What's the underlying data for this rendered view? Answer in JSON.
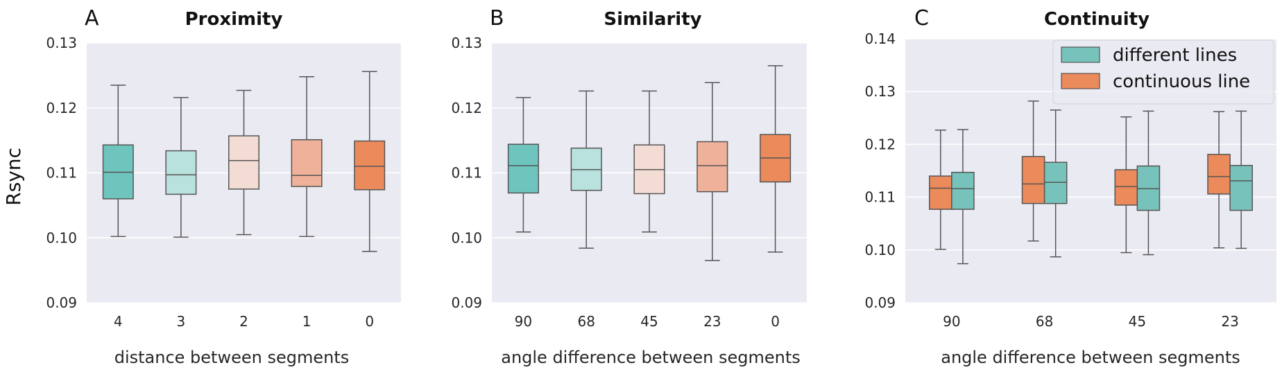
{
  "figure": {
    "ylabel": "Rsync"
  },
  "chart_data": [
    {
      "type": "box",
      "panel_label": "A",
      "title": "Proximity",
      "xlabel": "distance between segments",
      "ylabel": "Rsync",
      "ylim": [
        0.09,
        0.13
      ],
      "yticks": [
        "0.09",
        "0.10",
        "0.11",
        "0.12",
        "0.13"
      ],
      "grid": true,
      "categories": [
        "4",
        "3",
        "2",
        "1",
        "0"
      ],
      "colors": [
        "#6ec5bd",
        "#b9e1dd",
        "#f2dcd3",
        "#efb199",
        "#eb8a5b"
      ],
      "series": [
        {
          "boxes": [
            {
              "whislo": 0.1002,
              "q1": 0.106,
              "med": 0.1101,
              "q3": 0.1143,
              "whishi": 0.1235
            },
            {
              "whislo": 0.1001,
              "q1": 0.1067,
              "med": 0.1097,
              "q3": 0.1134,
              "whishi": 0.1216
            },
            {
              "whislo": 0.1005,
              "q1": 0.1075,
              "med": 0.1119,
              "q3": 0.1157,
              "whishi": 0.1227
            },
            {
              "whislo": 0.1002,
              "q1": 0.1079,
              "med": 0.1096,
              "q3": 0.1151,
              "whishi": 0.1248
            },
            {
              "whislo": 0.0979,
              "q1": 0.1074,
              "med": 0.111,
              "q3": 0.1149,
              "whishi": 0.1256
            }
          ]
        }
      ]
    },
    {
      "type": "box",
      "panel_label": "B",
      "title": "Similarity",
      "xlabel": "angle difference between segments",
      "ylim": [
        0.09,
        0.13
      ],
      "yticks": [
        "0.09",
        "0.10",
        "0.11",
        "0.12",
        "0.13"
      ],
      "grid": true,
      "categories": [
        "90",
        "68",
        "45",
        "23",
        "0"
      ],
      "colors": [
        "#6ec5bd",
        "#b9e1dd",
        "#f2dcd3",
        "#efb199",
        "#eb8a5b"
      ],
      "series": [
        {
          "boxes": [
            {
              "whislo": 0.1009,
              "q1": 0.1069,
              "med": 0.1111,
              "q3": 0.1144,
              "whishi": 0.1216
            },
            {
              "whislo": 0.0984,
              "q1": 0.1073,
              "med": 0.1105,
              "q3": 0.1138,
              "whishi": 0.1226
            },
            {
              "whislo": 0.1009,
              "q1": 0.1068,
              "med": 0.1105,
              "q3": 0.1143,
              "whishi": 0.1226
            },
            {
              "whislo": 0.0965,
              "q1": 0.1071,
              "med": 0.1111,
              "q3": 0.1148,
              "whishi": 0.1239
            },
            {
              "whislo": 0.0978,
              "q1": 0.1086,
              "med": 0.1123,
              "q3": 0.1159,
              "whishi": 0.1265
            }
          ]
        }
      ]
    },
    {
      "type": "box",
      "panel_label": "C",
      "title": "Continuity",
      "xlabel": "angle difference between segments",
      "ylim": [
        0.09,
        0.14
      ],
      "yticks": [
        "0.09",
        "0.10",
        "0.11",
        "0.12",
        "0.13",
        "0.14"
      ],
      "grid": true,
      "categories": [
        "90",
        "68",
        "45",
        "23"
      ],
      "legend_position": "top-right",
      "series": [
        {
          "name": "continuous line",
          "color": "#eb8a5b",
          "boxes": [
            {
              "whislo": 0.1001,
              "q1": 0.1077,
              "med": 0.1117,
              "q3": 0.114,
              "whishi": 0.1227
            },
            {
              "whislo": 0.1017,
              "q1": 0.1088,
              "med": 0.1125,
              "q3": 0.1177,
              "whishi": 0.1282
            },
            {
              "whislo": 0.0995,
              "q1": 0.1085,
              "med": 0.112,
              "q3": 0.1152,
              "whishi": 0.1252
            },
            {
              "whislo": 0.1004,
              "q1": 0.1106,
              "med": 0.1139,
              "q3": 0.1181,
              "whishi": 0.1262
            }
          ]
        },
        {
          "name": "different lines",
          "color": "#77c3bb",
          "boxes": [
            {
              "whislo": 0.0974,
              "q1": 0.1077,
              "med": 0.1116,
              "q3": 0.1147,
              "whishi": 0.1228
            },
            {
              "whislo": 0.0987,
              "q1": 0.1088,
              "med": 0.1128,
              "q3": 0.1166,
              "whishi": 0.1265
            },
            {
              "whislo": 0.0991,
              "q1": 0.1075,
              "med": 0.1116,
              "q3": 0.1159,
              "whishi": 0.1263
            },
            {
              "whislo": 0.1003,
              "q1": 0.1075,
              "med": 0.1131,
              "q3": 0.116,
              "whishi": 0.1263
            }
          ]
        }
      ],
      "legend_order": [
        "different lines",
        "continuous line"
      ]
    }
  ]
}
